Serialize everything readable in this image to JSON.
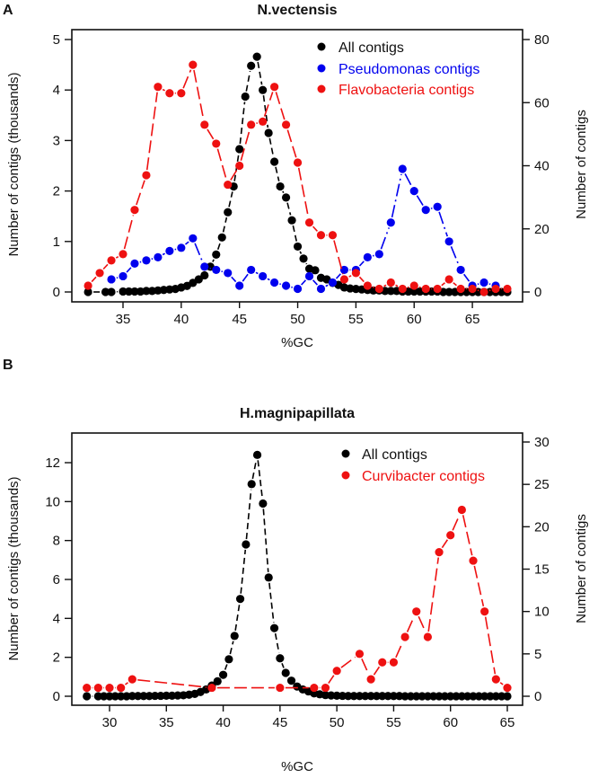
{
  "chart_data": [
    {
      "type": "line",
      "panel_label": "A",
      "title": "N.vectensis",
      "xlabel": "%GC",
      "ylabel": "Number of contigs (thousands)",
      "ylabel_right": "Number of contigs",
      "xlim": [
        32,
        68
      ],
      "ylim": [
        0,
        5
      ],
      "ylim_right": [
        0,
        80
      ],
      "xticks": [
        35,
        40,
        45,
        50,
        55,
        60,
        65
      ],
      "yticks": [
        0,
        1,
        2,
        3,
        4,
        5
      ],
      "yticks_right": [
        0,
        20,
        40,
        60,
        80
      ],
      "legend_position": "top-right",
      "series": [
        {
          "name": "All contigs",
          "axis": "left",
          "color": "#000000",
          "dash": "7,4",
          "x": [
            32,
            33.5,
            34,
            35,
            35.5,
            36,
            36.5,
            37,
            37.5,
            38,
            38.5,
            39,
            39.5,
            40,
            40.5,
            41,
            41.5,
            42,
            42.5,
            43,
            43.5,
            44,
            44.5,
            45,
            45.5,
            46,
            46.5,
            47,
            47.5,
            48,
            48.5,
            49,
            49.5,
            50,
            50.5,
            51,
            51.5,
            52,
            52.5,
            53,
            53.5,
            54,
            54.5,
            55,
            55.5,
            56,
            56.5,
            57,
            57.5,
            58,
            58.5,
            59,
            59.5,
            60,
            60.5,
            61,
            61.5,
            62,
            62.5,
            63,
            63.5,
            64,
            64.5,
            65,
            65.5,
            66,
            66.5,
            67,
            67.5,
            68
          ],
          "y": [
            0,
            0,
            0,
            0.01,
            0.01,
            0.01,
            0.01,
            0.02,
            0.02,
            0.03,
            0.04,
            0.05,
            0.06,
            0.09,
            0.12,
            0.18,
            0.25,
            0.33,
            0.5,
            0.74,
            1.08,
            1.58,
            2.09,
            2.83,
            3.87,
            4.48,
            4.66,
            4.0,
            3.15,
            2.58,
            2.09,
            1.87,
            1.42,
            0.9,
            0.66,
            0.46,
            0.43,
            0.28,
            0.25,
            0.18,
            0.14,
            0.09,
            0.07,
            0.06,
            0.05,
            0.04,
            0.03,
            0.03,
            0.02,
            0.02,
            0.02,
            0.01,
            0.01,
            0.01,
            0.01,
            0.01,
            0.01,
            0.01,
            0,
            0,
            0,
            0,
            0,
            0,
            0,
            0,
            0,
            0,
            0,
            0
          ]
        },
        {
          "name": "Pseudomonas contigs",
          "axis": "right",
          "color": "#0000ee",
          "dash": "14,4,2,4",
          "x": [
            34,
            35,
            36,
            37,
            38,
            39,
            40,
            41,
            42,
            43,
            44,
            45,
            46,
            47,
            48,
            49,
            50,
            51,
            52,
            53,
            54,
            55,
            56,
            57,
            58,
            59,
            60,
            61,
            62,
            63,
            64,
            65,
            66,
            67
          ],
          "y": [
            4,
            5,
            9,
            10,
            11,
            13,
            14,
            17,
            8,
            7,
            6,
            2,
            7,
            5,
            3,
            2,
            1,
            5,
            1,
            3,
            7,
            7,
            11,
            12,
            22,
            39,
            32,
            26,
            27,
            16,
            7,
            2,
            3,
            2
          ]
        },
        {
          "name": "Flavobacteria contigs",
          "axis": "right",
          "color": "#ee1111",
          "dash": "14,5",
          "x": [
            32,
            33,
            34,
            35,
            36,
            37,
            38,
            39,
            40,
            41,
            42,
            43,
            44,
            45,
            46,
            47,
            48,
            49,
            50,
            51,
            52,
            53,
            54,
            55,
            56,
            57,
            58,
            59,
            60,
            61,
            62,
            63,
            64,
            65,
            66,
            67,
            68
          ],
          "y": [
            2,
            6,
            10,
            12,
            26,
            37,
            65,
            63,
            63,
            72,
            53,
            47,
            34,
            40,
            53,
            54,
            65,
            53,
            41,
            22,
            18,
            18,
            4,
            6,
            2,
            1,
            3,
            1,
            2,
            1,
            1,
            4,
            1,
            1,
            0,
            1,
            1
          ]
        }
      ]
    },
    {
      "type": "line",
      "panel_label": "B",
      "title": "H.magnipapillata",
      "xlabel": "%GC",
      "ylabel": "Number of contigs (thousands)",
      "ylabel_right": "Number of contigs",
      "xlim": [
        28,
        65
      ],
      "ylim": [
        0,
        13
      ],
      "ylim_right": [
        0,
        30
      ],
      "xticks": [
        30,
        35,
        40,
        45,
        50,
        55,
        60,
        65
      ],
      "yticks": [
        0,
        2,
        4,
        6,
        8,
        10,
        12
      ],
      "yticks_right": [
        0,
        5,
        10,
        15,
        20,
        25,
        30
      ],
      "legend_position": "top-right",
      "series": [
        {
          "name": "All contigs",
          "axis": "left",
          "color": "#000000",
          "dash": "7,4",
          "x": [
            28,
            29,
            29.5,
            30,
            30.5,
            31,
            31.5,
            32,
            32.5,
            33,
            33.5,
            34,
            34.5,
            35,
            35.5,
            36,
            36.5,
            37,
            37.5,
            38,
            38.5,
            39,
            39.5,
            40,
            40.5,
            41,
            41.5,
            42,
            42.5,
            43,
            43.5,
            44,
            44.5,
            45,
            45.5,
            46,
            46.5,
            47,
            47.5,
            48,
            48.5,
            49,
            49.5,
            50,
            50.5,
            51,
            51.5,
            52,
            52.5,
            53,
            53.5,
            54,
            54.5,
            55,
            55.5,
            56,
            56.5,
            57,
            57.5,
            58,
            58.5,
            59,
            59.5,
            60,
            60.5,
            61,
            61.5,
            62,
            62.5,
            63,
            63.5,
            64,
            64.5,
            65
          ],
          "y": [
            0,
            0,
            0,
            0,
            0,
            0,
            0,
            0.01,
            0.01,
            0.01,
            0.01,
            0.02,
            0.02,
            0.03,
            0.03,
            0.04,
            0.05,
            0.08,
            0.12,
            0.22,
            0.35,
            0.55,
            0.77,
            1.1,
            1.9,
            3.1,
            5.0,
            7.8,
            10.9,
            12.4,
            9.9,
            6.1,
            3.5,
            1.95,
            1.2,
            0.8,
            0.5,
            0.35,
            0.25,
            0.15,
            0.1,
            0.06,
            0.04,
            0.03,
            0.02,
            0.01,
            0.01,
            0.01,
            0.01,
            0.01,
            0.01,
            0.01,
            0.01,
            0.01,
            0.01,
            0,
            0,
            0,
            0,
            0,
            0,
            0,
            0,
            0,
            0,
            0,
            0,
            0,
            0,
            0,
            0,
            0,
            0,
            0
          ]
        },
        {
          "name": "Curvibacter contigs",
          "axis": "right",
          "color": "#ee1111",
          "dash": "14,5",
          "x": [
            28,
            29,
            30,
            31,
            32,
            39,
            45,
            48,
            49,
            50,
            52,
            53,
            54,
            55,
            56,
            57,
            58,
            59,
            60,
            61,
            62,
            63,
            64,
            65
          ],
          "y": [
            1,
            1,
            1,
            1,
            2,
            1,
            1,
            1,
            1,
            3,
            5,
            2,
            4,
            4,
            7,
            10,
            7,
            17,
            19,
            22,
            16,
            10,
            2,
            1
          ]
        }
      ]
    }
  ]
}
